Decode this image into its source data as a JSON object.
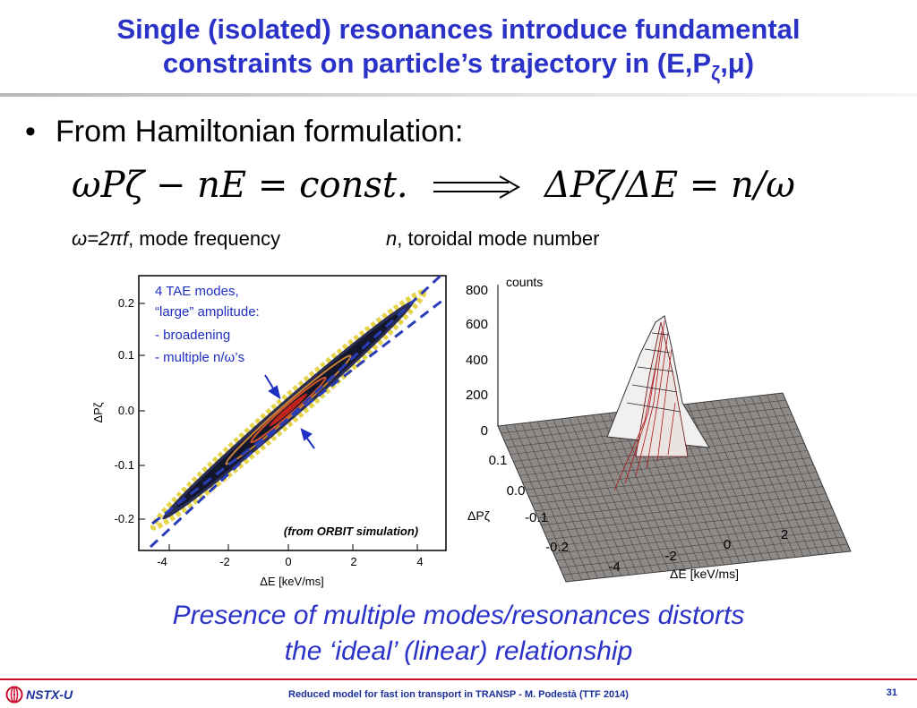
{
  "title": {
    "line1": "Single (isolated) resonances introduce fundamental",
    "line2_prefix": "constraints on particle’s trajectory in (E,P",
    "line2_sub": "ζ",
    "line2_suffix": ",μ)"
  },
  "bullet": {
    "dot": "•",
    "text": "From Hamiltonian formulation:"
  },
  "equations": {
    "left": "ωPζ − nE = const.",
    "right": "ΔPζ/ΔE = n/ω"
  },
  "definitions": {
    "omega_symbol": "ω=2πf",
    "omega_desc": ", mode frequency",
    "n_symbol": "n",
    "n_desc": ", toroidal mode number"
  },
  "scatter_plot": {
    "annotation": [
      "4 TAE modes,",
      "“large” amplitude:",
      "- broadening",
      "- multiple n/ω’s"
    ],
    "source_label": "(from ORBIT simulation)",
    "xlabel": "ΔE [keV/ms]",
    "ylabel": "ΔPζ",
    "x_ticks": [
      "-4",
      "-2",
      "0",
      "2",
      "4"
    ],
    "y_ticks": [
      "0.2",
      "0.1",
      "0.0",
      "-0.1",
      "-0.2"
    ]
  },
  "surface_plot": {
    "zlabel": "counts",
    "z_ticks": [
      "800",
      "600",
      "400",
      "200",
      "0"
    ],
    "ylabel": "ΔPζ",
    "y_ticks": [
      "0.1",
      "0.0",
      "-0.1",
      "-0.2"
    ],
    "xlabel": "ΔE [keV/ms]",
    "x_ticks": [
      "-4",
      "-2",
      "0",
      "2"
    ]
  },
  "conclusion": {
    "line1": "Presence of multiple modes/resonances distorts",
    "line2": "the ‘ideal’ (linear) relationship"
  },
  "footer": {
    "logo_text": "NSTX-U",
    "text": "Reduced model for fast ion transport in TRANSP - M. Podestà (TTF 2014)",
    "page_number": "31"
  },
  "colors": {
    "title_blue": "#2a32c8",
    "footer_red": "#c8102e",
    "footer_blue": "#1a2f99"
  }
}
